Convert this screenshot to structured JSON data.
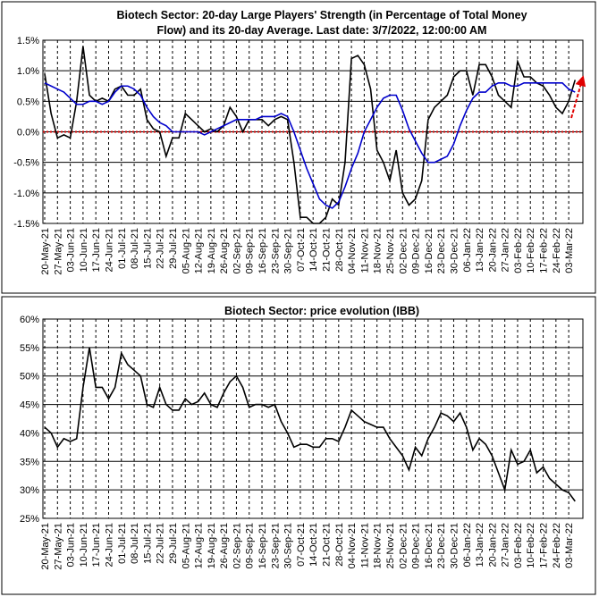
{
  "chart_data": [
    {
      "type": "line",
      "title": [
        "Biotech Sector: 20-day Large Players' Strength (in Percentage of Total Money",
        "Flow) and its 20-day Average. Last date: 3/7/2022, 12:00:00 AM"
      ],
      "categories": [
        "20-May-21",
        null,
        "27-May-21",
        null,
        "03-Jun-21",
        null,
        "10-Jun-21",
        null,
        "17-Jun-21",
        null,
        "24-Jun-21",
        null,
        "01-Jul-21",
        null,
        "08-Jul-21",
        null,
        "15-Jul-21",
        null,
        "22-Jul-21",
        null,
        "29-Jul-21",
        null,
        "05-Aug-21",
        null,
        "12-Aug-21",
        null,
        "19-Aug-21",
        null,
        "26-Aug-21",
        null,
        "02-Sep-21",
        null,
        "09-Sep-21",
        null,
        "16-Sep-21",
        null,
        "23-Sep-21",
        null,
        "30-Sep-21",
        null,
        "07-Oct-21",
        null,
        "14-Oct-21",
        null,
        "21-Oct-21",
        null,
        "28-Oct-21",
        null,
        "04-Nov-21",
        null,
        "11-Nov-21",
        null,
        "18-Nov-21",
        null,
        "25-Nov-21",
        null,
        "02-Dec-21",
        null,
        "09-Dec-21",
        null,
        "16-Dec-21",
        null,
        "23-Dec-21",
        null,
        "30-Dec-21",
        null,
        "06-Jan-22",
        null,
        "13-Jan-22",
        null,
        "20-Jan-22",
        null,
        "27-Jan-22",
        null,
        "03-Feb-22",
        null,
        "10-Feb-22",
        null,
        "17-Feb-22",
        null,
        "24-Feb-22",
        null,
        "03-Mar-22",
        null
      ],
      "series": [
        {
          "color": "#000000",
          "values": [
            0.95,
            0.3,
            -0.1,
            -0.05,
            -0.1,
            0.5,
            1.4,
            0.6,
            0.5,
            0.55,
            0.5,
            0.7,
            0.75,
            0.6,
            0.6,
            0.7,
            0.2,
            0.05,
            0.0,
            -0.4,
            -0.1,
            -0.1,
            0.3,
            0.2,
            0.1,
            0.0,
            0.05,
            0.0,
            0.1,
            0.4,
            0.25,
            0.0,
            0.2,
            0.2,
            0.2,
            0.1,
            0.2,
            0.25,
            0.2,
            -0.5,
            -1.4,
            -1.4,
            -1.5,
            -1.5,
            -1.4,
            -1.1,
            -1.2,
            -0.5,
            1.2,
            1.25,
            1.1,
            0.7,
            -0.3,
            -0.5,
            -0.8,
            -0.3,
            -1.0,
            -1.2,
            -1.1,
            -0.8,
            0.2,
            0.4,
            0.5,
            0.6,
            0.9,
            1.0,
            1.0,
            0.6,
            1.1,
            1.1,
            0.9,
            0.6,
            0.5,
            0.4,
            1.15,
            0.9,
            0.9,
            0.8,
            0.75,
            0.6,
            0.4,
            0.3,
            0.5,
            0.85
          ]
        },
        {
          "color": "#0000cc",
          "values": [
            0.8,
            0.75,
            0.7,
            0.65,
            0.55,
            0.45,
            0.45,
            0.5,
            0.5,
            0.45,
            0.5,
            0.65,
            0.75,
            0.75,
            0.7,
            0.6,
            0.4,
            0.25,
            0.15,
            0.1,
            0.0,
            0.0,
            0.0,
            0.0,
            0.0,
            -0.05,
            0.0,
            0.05,
            0.1,
            0.15,
            0.2,
            0.2,
            0.2,
            0.2,
            0.25,
            0.25,
            0.25,
            0.3,
            0.25,
            0.0,
            -0.3,
            -0.6,
            -0.85,
            -1.1,
            -1.2,
            -1.25,
            -1.15,
            -0.9,
            -0.6,
            -0.35,
            0.0,
            0.2,
            0.4,
            0.55,
            0.6,
            0.6,
            0.35,
            0.05,
            -0.15,
            -0.35,
            -0.5,
            -0.5,
            -0.45,
            -0.4,
            -0.2,
            0.1,
            0.35,
            0.55,
            0.65,
            0.65,
            0.75,
            0.8,
            0.8,
            0.75,
            0.75,
            0.8,
            0.8,
            0.8,
            0.8,
            0.8,
            0.8,
            0.8,
            0.7,
            0.65
          ]
        }
      ],
      "ylim": [
        -1.5,
        1.5
      ],
      "yticks": [
        {
          "value": -1.5,
          "label": "-1.5%"
        },
        {
          "value": -1.0,
          "label": "-1.0%"
        },
        {
          "value": -0.5,
          "label": "-0.5%"
        },
        {
          "value": 0,
          "label": "0.0%"
        },
        {
          "value": 0.5,
          "label": "0.5%"
        },
        {
          "value": 1.0,
          "label": "1.0%"
        },
        {
          "value": 1.5,
          "label": "1.5%"
        }
      ],
      "grid": true,
      "zero_line": {
        "value": 0,
        "color": "#cc0000"
      }
    },
    {
      "type": "line",
      "title": [
        "Biotech Sector: price evolution (IBB)"
      ],
      "categories": [
        "20-May-21",
        null,
        "27-May-21",
        null,
        "03-Jun-21",
        null,
        "10-Jun-21",
        null,
        "17-Jun-21",
        null,
        "24-Jun-21",
        null,
        "01-Jul-21",
        null,
        "08-Jul-21",
        null,
        "15-Jul-21",
        null,
        "22-Jul-21",
        null,
        "29-Jul-21",
        null,
        "05-Aug-21",
        null,
        "12-Aug-21",
        null,
        "19-Aug-21",
        null,
        "26-Aug-21",
        null,
        "02-Sep-21",
        null,
        "09-Sep-21",
        null,
        "16-Sep-21",
        null,
        "23-Sep-21",
        null,
        "30-Sep-21",
        null,
        "07-Oct-21",
        null,
        "14-Oct-21",
        null,
        "21-Oct-21",
        null,
        "28-Oct-21",
        null,
        "04-Nov-21",
        null,
        "11-Nov-21",
        null,
        "18-Nov-21",
        null,
        "25-Nov-21",
        null,
        "02-Dec-21",
        null,
        "09-Dec-21",
        null,
        "16-Dec-21",
        null,
        "23-Dec-21",
        null,
        "30-Dec-21",
        null,
        "06-Jan-22",
        null,
        "13-Jan-22",
        null,
        "20-Jan-22",
        null,
        "27-Jan-22",
        null,
        "03-Feb-22",
        null,
        "10-Feb-22",
        null,
        "17-Feb-22",
        null,
        "24-Feb-22",
        null,
        "03-Mar-22",
        null
      ],
      "series": [
        {
          "color": "#000000",
          "values": [
            41,
            40,
            37.5,
            39,
            38.5,
            39,
            48,
            55,
            48,
            48,
            46,
            48,
            54,
            52,
            51,
            50,
            45,
            44.5,
            48,
            45,
            44,
            44,
            46,
            45,
            45.5,
            47,
            45,
            44.5,
            47,
            49,
            50,
            48,
            44.5,
            45,
            45,
            44.5,
            45,
            42,
            40,
            37.5,
            38,
            38,
            37.5,
            37.5,
            39,
            39,
            38.5,
            41,
            44,
            43,
            42,
            41.5,
            41,
            41,
            39,
            37.5,
            36,
            33.5,
            37.5,
            36,
            39,
            41,
            43.5,
            43,
            42,
            43.5,
            41,
            37,
            39,
            38,
            36,
            33,
            30,
            37,
            34.5,
            35,
            37,
            33,
            34,
            32,
            31,
            30,
            29.5,
            28
          ]
        }
      ],
      "ylim": [
        25,
        60
      ],
      "yticks": [
        {
          "value": 25,
          "label": "25%"
        },
        {
          "value": 30,
          "label": "30%"
        },
        {
          "value": 35,
          "label": "35%"
        },
        {
          "value": 40,
          "label": "40%"
        },
        {
          "value": 45,
          "label": "45%"
        },
        {
          "value": 50,
          "label": "50%"
        },
        {
          "value": 55,
          "label": "55%"
        },
        {
          "value": 60,
          "label": "60%"
        }
      ],
      "grid": true
    }
  ]
}
